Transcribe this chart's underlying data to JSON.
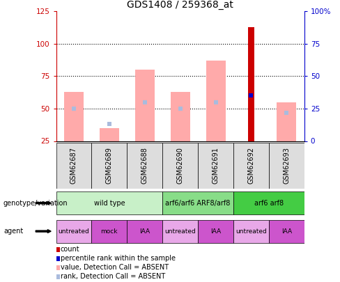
{
  "title": "GDS1408 / 259368_at",
  "samples": [
    "GSM62687",
    "GSM62689",
    "GSM62688",
    "GSM62690",
    "GSM62691",
    "GSM62692",
    "GSM62693"
  ],
  "pink_bar_bottom": [
    25,
    25,
    25,
    25,
    25,
    25,
    25
  ],
  "pink_bar_top": [
    63,
    35,
    80,
    63,
    87,
    25,
    55
  ],
  "red_bar_top": [
    null,
    null,
    null,
    null,
    null,
    113,
    null
  ],
  "blue_square_values": [
    50,
    38,
    55,
    50,
    55,
    60,
    47
  ],
  "blue_dark_values": [
    null,
    null,
    null,
    null,
    null,
    60,
    null
  ],
  "ylim_left": [
    25,
    125
  ],
  "ylim_right": [
    0,
    100
  ],
  "yticks_left": [
    25,
    50,
    75,
    100,
    125
  ],
  "yticks_right": [
    0,
    25,
    50,
    75,
    100
  ],
  "ytick_labels_left": [
    "25",
    "50",
    "75",
    "100",
    "125"
  ],
  "ytick_labels_right": [
    "0",
    "25",
    "50",
    "75",
    "100%"
  ],
  "genotype_groups": [
    {
      "label": "wild type",
      "start": 0,
      "end": 3,
      "color": "#c8f0c8"
    },
    {
      "label": "arf6/arf6 ARF8/arf8",
      "start": 3,
      "end": 5,
      "color": "#88dd88"
    },
    {
      "label": "arf6 arf8",
      "start": 5,
      "end": 7,
      "color": "#44cc44"
    }
  ],
  "agent_groups": [
    {
      "label": "untreated",
      "start": 0,
      "end": 1,
      "color": "#e8a8e8"
    },
    {
      "label": "mock",
      "start": 1,
      "end": 2,
      "color": "#cc55cc"
    },
    {
      "label": "IAA",
      "start": 2,
      "end": 3,
      "color": "#cc55cc"
    },
    {
      "label": "untreated",
      "start": 3,
      "end": 4,
      "color": "#e8a8e8"
    },
    {
      "label": "IAA",
      "start": 4,
      "end": 5,
      "color": "#cc55cc"
    },
    {
      "label": "untreated",
      "start": 5,
      "end": 6,
      "color": "#e8a8e8"
    },
    {
      "label": "IAA",
      "start": 6,
      "end": 7,
      "color": "#cc55cc"
    }
  ],
  "legend_items": [
    {
      "label": "count",
      "color": "#cc0000"
    },
    {
      "label": "percentile rank within the sample",
      "color": "#0000cc"
    },
    {
      "label": "value, Detection Call = ABSENT",
      "color": "#ffaaaa"
    },
    {
      "label": "rank, Detection Call = ABSENT",
      "color": "#aabbdd"
    }
  ],
  "pink_color": "#ffaaaa",
  "light_blue_color": "#aabbdd",
  "red_color": "#cc0000",
  "blue_color": "#0000cc",
  "bg_color": "#ffffff",
  "left_axis_color": "#cc0000",
  "right_axis_color": "#0000cc",
  "sample_box_color": "#dddddd"
}
